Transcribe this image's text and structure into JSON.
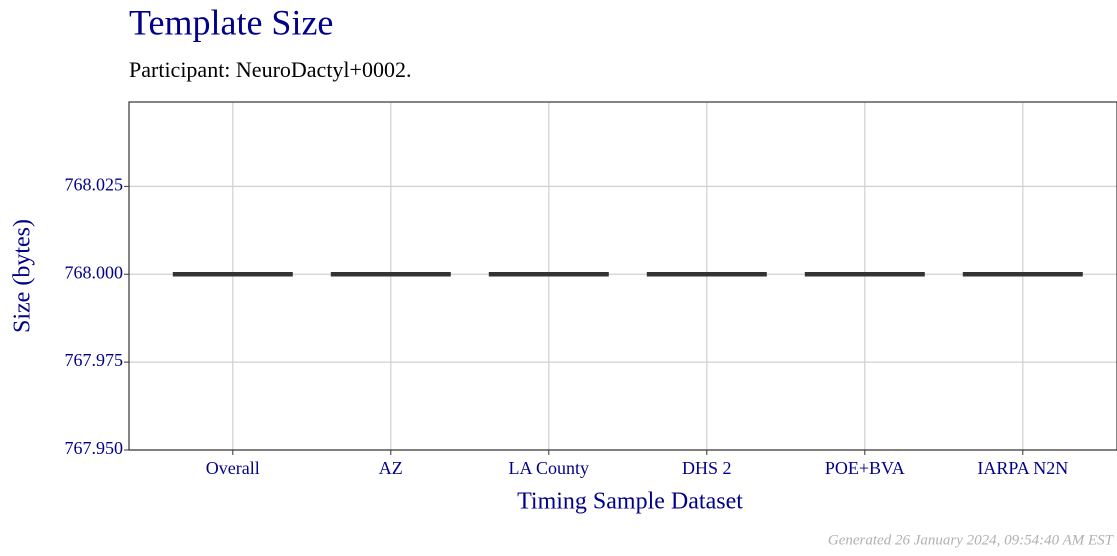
{
  "chart_data": {
    "type": "box",
    "title": "Template Size",
    "subtitle": "Participant: NeuroDactyl+0002.",
    "x_label": "Timing Sample Dataset",
    "y_label": "Size (bytes)",
    "categories": [
      "Overall",
      "AZ",
      "LA County",
      "DHS 2",
      "POE+BVA",
      "IARPA N2N"
    ],
    "values": [
      768,
      768,
      768,
      768,
      768,
      768
    ],
    "color": "#333333",
    "ylim": [
      767.95,
      768.049
    ],
    "yticks": [
      {
        "value": 767.95,
        "label": "767.950"
      },
      767.975,
      {
        "value": 768,
        "label": "768.000"
      },
      768.025
    ],
    "grid": true,
    "footer": "Generated 26 January 2024, 09:54:40 AM EST"
  }
}
